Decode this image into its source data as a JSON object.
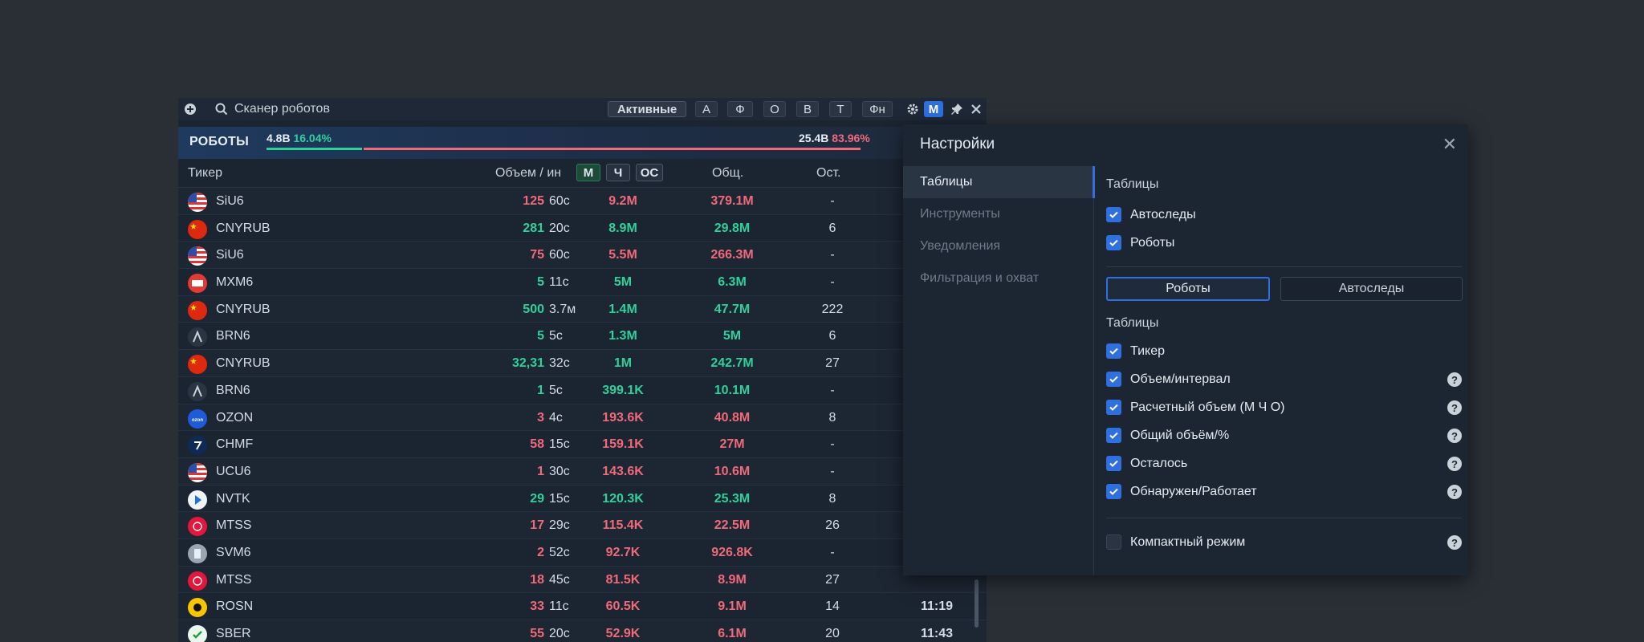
{
  "toolbar": {
    "title": "Сканер роботов",
    "active_label": "Активные",
    "filters": [
      "А",
      "Ф",
      "О",
      "В",
      "Т",
      "Фн"
    ],
    "mode_label": "М"
  },
  "robots_bar": {
    "label": "РОБОТЫ",
    "left_value": "4.8B",
    "left_pct": "16.04%",
    "right_value": "25.4B",
    "right_pct": "83.96%",
    "left_fraction": 0.1604
  },
  "table": {
    "headers": {
      "ticker": "Тикер",
      "volume": "Объем / ин",
      "btn_m": "М",
      "btn_h": "Ч",
      "btn_os": "ОС",
      "total": "Общ.",
      "rest": "Ост."
    },
    "rows": [
      {
        "flag": "us",
        "ticker": "SiU6",
        "count": "125",
        "interval": "60с",
        "calc": "9.2M",
        "total": "379.1M",
        "rest": "-",
        "time": "",
        "color": "red"
      },
      {
        "flag": "cn",
        "ticker": "CNYRUB",
        "count": "281",
        "interval": "20с",
        "calc": "8.9M",
        "total": "29.8M",
        "rest": "6",
        "time": "",
        "color": "green"
      },
      {
        "flag": "us",
        "ticker": "SiU6",
        "count": "75",
        "interval": "60с",
        "calc": "5.5M",
        "total": "266.3M",
        "rest": "-",
        "time": "",
        "color": "red"
      },
      {
        "flag": "mx",
        "ticker": "MXM6",
        "count": "5",
        "interval": "11с",
        "calc": "5M",
        "total": "6.3M",
        "rest": "-",
        "time": "",
        "color": "green"
      },
      {
        "flag": "cn",
        "ticker": "CNYRUB",
        "count": "500",
        "interval": "3.7м",
        "calc": "1.4M",
        "total": "47.7M",
        "rest": "222",
        "time": "",
        "color": "green"
      },
      {
        "flag": "br",
        "ticker": "BRN6",
        "count": "5",
        "interval": "5с",
        "calc": "1.3M",
        "total": "5M",
        "rest": "6",
        "time": "",
        "color": "green"
      },
      {
        "flag": "cn",
        "ticker": "CNYRUB",
        "count": "32,31",
        "interval": "32с",
        "calc": "1M",
        "total": "242.7M",
        "rest": "27",
        "time": "",
        "color": "green"
      },
      {
        "flag": "br",
        "ticker": "BRN6",
        "count": "1",
        "interval": "5с",
        "calc": "399.1K",
        "total": "10.1M",
        "rest": "-",
        "time": "",
        "color": "green"
      },
      {
        "flag": "oz",
        "ticker": "OZON",
        "count": "3",
        "interval": "4с",
        "calc": "193.6K",
        "total": "40.8M",
        "rest": "8",
        "time": "",
        "color": "red"
      },
      {
        "flag": "ch",
        "ticker": "CHMF",
        "count": "58",
        "interval": "15с",
        "calc": "159.1K",
        "total": "27M",
        "rest": "-",
        "time": "",
        "color": "red"
      },
      {
        "flag": "us",
        "ticker": "UCU6",
        "count": "1",
        "interval": "30с",
        "calc": "143.6K",
        "total": "10.6M",
        "rest": "-",
        "time": "",
        "color": "red"
      },
      {
        "flag": "nv",
        "ticker": "NVTK",
        "count": "29",
        "interval": "15с",
        "calc": "120.3K",
        "total": "25.3M",
        "rest": "8",
        "time": "",
        "color": "green"
      },
      {
        "flag": "mt",
        "ticker": "MTSS",
        "count": "17",
        "interval": "29с",
        "calc": "115.4K",
        "total": "22.5M",
        "rest": "26",
        "time": "",
        "color": "red"
      },
      {
        "flag": "sv",
        "ticker": "SVM6",
        "count": "2",
        "interval": "52с",
        "calc": "92.7K",
        "total": "926.8K",
        "rest": "-",
        "time": "",
        "color": "red"
      },
      {
        "flag": "mt",
        "ticker": "MTSS",
        "count": "18",
        "interval": "45с",
        "calc": "81.5K",
        "total": "8.9M",
        "rest": "27",
        "time": "",
        "color": "red"
      },
      {
        "flag": "ro",
        "ticker": "ROSN",
        "count": "33",
        "interval": "11с",
        "calc": "60.5K",
        "total": "9.1M",
        "rest": "14",
        "time": "11:19",
        "color": "red"
      },
      {
        "flag": "sb",
        "ticker": "SBER",
        "count": "55",
        "interval": "20с",
        "calc": "52.9K",
        "total": "6.1M",
        "rest": "20",
        "time": "11:43",
        "color": "red"
      }
    ]
  },
  "settings": {
    "title": "Настройки",
    "nav": [
      "Таблицы",
      "Инструменты",
      "Уведомления",
      "Фильтрация и охват"
    ],
    "section1_title": "Таблицы",
    "top_checks": [
      "Автоследы",
      "Роботы"
    ],
    "segments": [
      "Роботы",
      "Автоследы"
    ],
    "section2_title": "Таблицы",
    "columns": [
      "Тикер",
      "Объем/интервал",
      "Расчетный объем (М Ч О)",
      "Общий объём/%",
      "Осталось",
      "Обнаружен/Работает"
    ],
    "compact_label": "Компактный режим"
  },
  "colors": {
    "accent": "#2f6fe0",
    "green": "#2ed19a",
    "red": "#f06a7a",
    "bg": "#2a2f36",
    "panel": "#1b2431"
  }
}
